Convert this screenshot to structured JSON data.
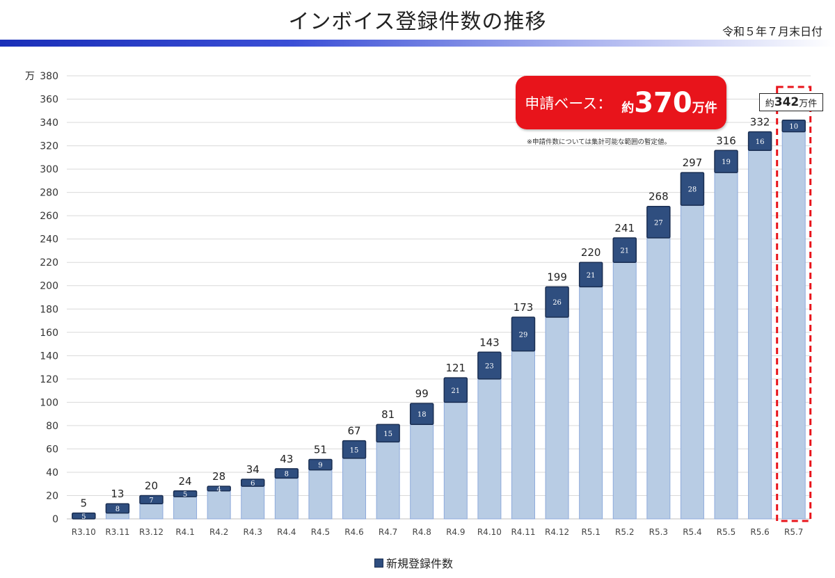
{
  "header": {
    "title": "インボイス登録件数の推移",
    "date": "令和５年７月末日付"
  },
  "callout": {
    "label": "申請ベース：",
    "value_prefix": "約",
    "value_number": "370",
    "value_suffix": "万件",
    "note": "※申請件数については集計可能な範囲の暫定値。"
  },
  "highlight": {
    "prefix": "約",
    "number": "342",
    "suffix": "万件"
  },
  "colors": {
    "base_bar": "#b8cce4",
    "base_bar_edge": "#8eaadb",
    "new_bar": "#2f4e7f",
    "new_bar_edge": "#1a2e52",
    "callout": "#e8141b",
    "dashed_box": "#e8141b"
  },
  "chart_data": {
    "type": "bar",
    "stacked": true,
    "unit_label": "万",
    "categories": [
      "R3.10",
      "R3.11",
      "R3.12",
      "R4.1",
      "R4.2",
      "R4.3",
      "R4.4",
      "R4.5",
      "R4.6",
      "R4.7",
      "R4.8",
      "R4.9",
      "R4.10",
      "R4.11",
      "R4.12",
      "R5.1",
      "R5.2",
      "R5.3",
      "R5.4",
      "R5.5",
      "R5.6",
      "R5.7"
    ],
    "series": [
      {
        "values": [
          0,
          5,
          13,
          19,
          24,
          28,
          35,
          42,
          52,
          66,
          81,
          100,
          120,
          144,
          173,
          199,
          220,
          241,
          269,
          297,
          316,
          332
        ]
      },
      {
        "name": "新規登録件数",
        "values": [
          5,
          8,
          7,
          5,
          4,
          6,
          8,
          9,
          15,
          15,
          18,
          21,
          23,
          29,
          26,
          21,
          21,
          27,
          28,
          19,
          16,
          10
        ]
      }
    ],
    "totals": [
      5,
      13,
      20,
      24,
      28,
      34,
      43,
      51,
      67,
      81,
      99,
      121,
      143,
      173,
      199,
      220,
      241,
      268,
      297,
      316,
      332,
      342
    ],
    "total_labels": [
      "5",
      "13",
      "20",
      "24",
      "28",
      "34",
      "43",
      "51",
      "67",
      "81",
      "99",
      "121",
      "143",
      "173",
      "199",
      "220",
      "241",
      "268",
      "297",
      "316",
      "332",
      ""
    ],
    "ylim": [
      0,
      380
    ],
    "yticks": [
      0,
      20,
      40,
      60,
      80,
      100,
      120,
      140,
      160,
      180,
      200,
      220,
      240,
      260,
      280,
      300,
      320,
      340,
      360,
      380
    ],
    "grid": true,
    "legend": "bottom-center",
    "highlighted_category": "R5.7"
  }
}
